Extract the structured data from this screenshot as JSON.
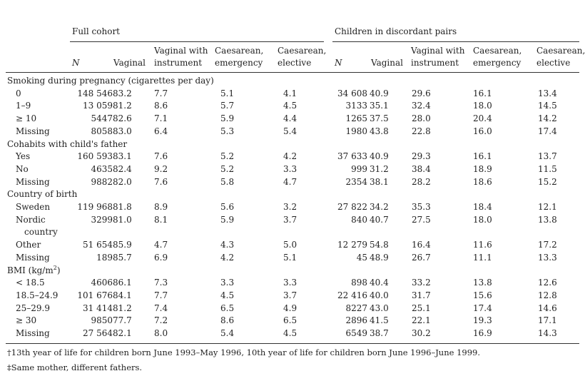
{
  "groups": {
    "full_cohort": "Full cohort",
    "discordant": "Children in discordant pairs"
  },
  "columns": {
    "n": "N",
    "vaginal": "Vaginal",
    "vaginal_instrument_1": "Vaginal with",
    "vaginal_instrument_2": "instrument",
    "caes_emerg_1": "Caesarean,",
    "caes_emerg_2": "emergency",
    "caes_elect_1": "Caesarean,",
    "caes_elect_2": "elective"
  },
  "sections": [
    {
      "title": "Smoking during pregnancy (cigarettes per day)",
      "rows": [
        {
          "label": "0",
          "n1": "148 546",
          "v1": "83.2",
          "vi1": "7.7",
          "ce1": "5.1",
          "cl1": "4.1",
          "n2": "34 608",
          "v2": "40.9",
          "vi2": "29.6",
          "ce2": "16.1",
          "cl2": "13.4"
        },
        {
          "label": "1–9",
          "n1": "13 059",
          "v1": "81.2",
          "vi1": "8.6",
          "ce1": "5.7",
          "cl1": "4.5",
          "n2": "3133",
          "v2": "35.1",
          "vi2": "32.4",
          "ce2": "18.0",
          "cl2": "14.5"
        },
        {
          "label": "≥ 10",
          "n1": "5447",
          "v1": "82.6",
          "vi1": "7.1",
          "ce1": "5.9",
          "cl1": "4.4",
          "n2": "1265",
          "v2": "37.5",
          "vi2": "28.0",
          "ce2": "20.4",
          "cl2": "14.2"
        },
        {
          "label": "Missing",
          "n1": "8058",
          "v1": "83.0",
          "vi1": "6.4",
          "ce1": "5.3",
          "cl1": "5.4",
          "n2": "1980",
          "v2": "43.8",
          "vi2": "22.8",
          "ce2": "16.0",
          "cl2": "17.4"
        }
      ]
    },
    {
      "title": "Cohabits with child's father",
      "rows": [
        {
          "label": "Yes",
          "n1": "160 593",
          "v1": "83.1",
          "vi1": "7.6",
          "ce1": "5.2",
          "cl1": "4.2",
          "n2": "37 633",
          "v2": "40.9",
          "vi2": "29.3",
          "ce2": "16.1",
          "cl2": "13.7"
        },
        {
          "label": "No",
          "n1": "4635",
          "v1": "82.4",
          "vi1": "9.2",
          "ce1": "5.2",
          "cl1": "3.3",
          "n2": "999",
          "v2": "31.2",
          "vi2": "38.4",
          "ce2": "18.9",
          "cl2": "11.5"
        },
        {
          "label": "Missing",
          "n1": "9882",
          "v1": "82.0",
          "vi1": "7.6",
          "ce1": "5.8",
          "cl1": "4.7",
          "n2": "2354",
          "v2": "38.1",
          "vi2": "28.2",
          "ce2": "18.6",
          "cl2": "15.2"
        }
      ]
    },
    {
      "title": "Country of birth",
      "rows": [
        {
          "label": "Sweden",
          "n1": "119 968",
          "v1": "81.8",
          "vi1": "8.9",
          "ce1": "5.6",
          "cl1": "3.2",
          "n2": "27 822",
          "v2": "34.2",
          "vi2": "35.3",
          "ce2": "18.4",
          "cl2": "12.1"
        },
        {
          "label": "Nordic",
          "label2": "country",
          "n1": "3299",
          "v1": "81.0",
          "vi1": "8.1",
          "ce1": "5.9",
          "cl1": "3.7",
          "n2": "840",
          "v2": "40.7",
          "vi2": "27.5",
          "ce2": "18.0",
          "cl2": "13.8"
        },
        {
          "label": "Other",
          "n1": "51 654",
          "v1": "85.9",
          "vi1": "4.7",
          "ce1": "4.3",
          "cl1": "5.0",
          "n2": "12 279",
          "v2": "54.8",
          "vi2": "16.4",
          "ce2": "11.6",
          "cl2": "17.2"
        },
        {
          "label": "Missing",
          "n1": "189",
          "v1": "85.7",
          "vi1": "6.9",
          "ce1": "4.2",
          "cl1": "5.1",
          "n2": "45",
          "v2": "48.9",
          "vi2": "26.7",
          "ce2": "11.1",
          "cl2": "13.3"
        }
      ]
    },
    {
      "title": "BMI (kg/m",
      "title_sup": "2",
      "title_end": ")",
      "rows": [
        {
          "label": "< 18.5",
          "n1": "4606",
          "v1": "86.1",
          "vi1": "7.3",
          "ce1": "3.3",
          "cl1": "3.3",
          "n2": "898",
          "v2": "40.4",
          "vi2": "33.2",
          "ce2": "13.8",
          "cl2": "12.6"
        },
        {
          "label": "18.5–24.9",
          "n1": "101 676",
          "v1": "84.1",
          "vi1": "7.7",
          "ce1": "4.5",
          "cl1": "3.7",
          "n2": "22 416",
          "v2": "40.0",
          "vi2": "31.7",
          "ce2": "15.6",
          "cl2": "12.8"
        },
        {
          "label": "25–29.9",
          "n1": "31 414",
          "v1": "81.2",
          "vi1": "7.4",
          "ce1": "6.5",
          "cl1": "4.9",
          "n2": "8227",
          "v2": "43.0",
          "vi2": "25.1",
          "ce2": "17.4",
          "cl2": "14.6"
        },
        {
          "label": "≥ 30",
          "n1": "9850",
          "v1": "77.7",
          "vi1": "7.2",
          "ce1": "8.6",
          "cl1": "6.5",
          "n2": "2896",
          "v2": "41.5",
          "vi2": "22.1",
          "ce2": "19.3",
          "cl2": "17.1"
        },
        {
          "label": "Missing",
          "n1": "27 564",
          "v1": "82.1",
          "vi1": "8.0",
          "ce1": "5.4",
          "cl1": "4.5",
          "n2": "6549",
          "v2": "38.7",
          "vi2": "30.2",
          "ce2": "16.9",
          "cl2": "14.3"
        }
      ]
    }
  ],
  "footnotes": [
    "†13th year of life for children born June 1993–May 1996, 10th year of life for children born June 1996–June 1999.",
    "‡Same mother, different fathers."
  ]
}
